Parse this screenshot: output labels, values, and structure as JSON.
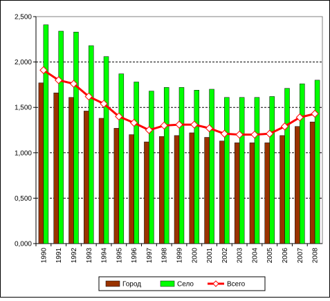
{
  "chart_data": {
    "type": "bar-line",
    "categories": [
      "1990",
      "1991",
      "1992",
      "1993",
      "1994",
      "1995",
      "1996",
      "1997",
      "1998",
      "1999",
      "2000",
      "2001",
      "2002",
      "2003",
      "2004",
      "2005",
      "2006",
      "2007",
      "2008"
    ],
    "series": [
      {
        "name": "Город",
        "type": "bar",
        "color": "#993300",
        "values": [
          1.77,
          1.66,
          1.61,
          1.46,
          1.38,
          1.27,
          1.2,
          1.12,
          1.18,
          1.19,
          1.22,
          1.17,
          1.13,
          1.11,
          1.11,
          1.11,
          1.19,
          1.29,
          1.34
        ]
      },
      {
        "name": "Село",
        "type": "bar",
        "color": "#00ff00",
        "values": [
          2.41,
          2.34,
          2.33,
          2.18,
          2.06,
          1.87,
          1.78,
          1.68,
          1.72,
          1.72,
          1.69,
          1.7,
          1.61,
          1.61,
          1.61,
          1.62,
          1.71,
          1.76,
          1.8
        ]
      },
      {
        "name": "Всего",
        "type": "line",
        "color": "#ff0000",
        "values": [
          1.91,
          1.8,
          1.76,
          1.62,
          1.54,
          1.4,
          1.33,
          1.25,
          1.3,
          1.31,
          1.31,
          1.27,
          1.21,
          1.2,
          1.2,
          1.21,
          1.29,
          1.39,
          1.43
        ]
      }
    ],
    "ylim": [
      0,
      2.5
    ],
    "yticks": [
      {
        "value": 0,
        "label": "0,000"
      },
      {
        "value": 0.5,
        "label": "0,500"
      },
      {
        "value": 1,
        "label": "1,000"
      },
      {
        "value": 1.5,
        "label": "1,500"
      },
      {
        "value": 2,
        "label": "2,000"
      },
      {
        "value": 2.5,
        "label": "2,500"
      }
    ],
    "grid": true,
    "legend": "bottom"
  }
}
